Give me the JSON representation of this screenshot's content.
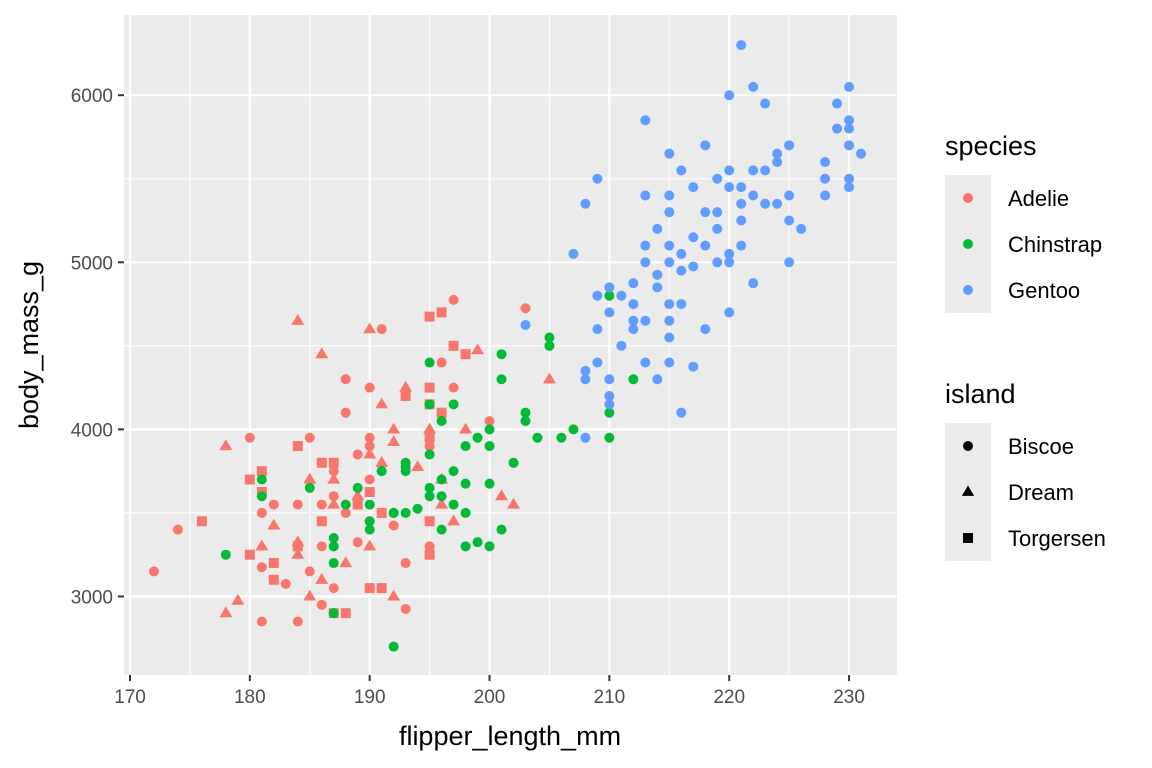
{
  "chart_data": {
    "type": "scatter",
    "title": "",
    "xlabel": "flipper_length_mm",
    "ylabel": "body_mass_g",
    "xlim": [
      169.5,
      234
    ],
    "ylim": [
      2530,
      6480
    ],
    "x_ticks": [
      170,
      180,
      190,
      200,
      210,
      220,
      230
    ],
    "y_ticks": [
      3000,
      4000,
      5000,
      6000
    ],
    "grid": true,
    "background": "#ebebeb",
    "legends": [
      {
        "title": "species",
        "aesthetic": "color",
        "placement": "right",
        "entries": [
          {
            "label": "Adelie",
            "color": "#f8766d"
          },
          {
            "label": "Chinstrap",
            "color": "#00ba38"
          },
          {
            "label": "Gentoo",
            "color": "#619cff"
          }
        ]
      },
      {
        "title": "island",
        "aesthetic": "shape",
        "placement": "right",
        "entries": [
          {
            "label": "Biscoe",
            "shape": "circle"
          },
          {
            "label": "Dream",
            "shape": "triangle"
          },
          {
            "label": "Torgersen",
            "shape": "square"
          }
        ]
      }
    ],
    "series": [
      {
        "species": "Adelie",
        "color": "#f8766d",
        "points": [
          [
            172,
            3150,
            "circle"
          ],
          [
            174,
            3400,
            "circle"
          ],
          [
            180,
            3950,
            "circle"
          ],
          [
            181,
            2850,
            "circle"
          ],
          [
            181,
            3175,
            "circle"
          ],
          [
            181,
            3500,
            "circle"
          ],
          [
            182,
            3550,
            "circle"
          ],
          [
            183,
            3075,
            "circle"
          ],
          [
            184,
            3550,
            "circle"
          ],
          [
            184,
            2850,
            "circle"
          ],
          [
            185,
            3150,
            "circle"
          ],
          [
            185,
            3950,
            "circle"
          ],
          [
            186,
            2950,
            "circle"
          ],
          [
            186,
            3550,
            "circle"
          ],
          [
            187,
            3050,
            "circle"
          ],
          [
            187,
            3750,
            "circle"
          ],
          [
            188,
            3500,
            "circle"
          ],
          [
            188,
            4300,
            "circle"
          ],
          [
            188,
            4100,
            "circle"
          ],
          [
            189,
            3850,
            "circle"
          ],
          [
            189,
            3325,
            "circle"
          ],
          [
            190,
            3450,
            "circle"
          ],
          [
            190,
            3700,
            "circle"
          ],
          [
            190,
            3950,
            "circle"
          ],
          [
            190,
            4250,
            "circle"
          ],
          [
            190,
            3900,
            "circle"
          ],
          [
            191,
            4600,
            "circle"
          ],
          [
            191,
            3050,
            "circle"
          ],
          [
            192,
            3425,
            "circle"
          ],
          [
            193,
            2925,
            "circle"
          ],
          [
            193,
            3200,
            "circle"
          ],
          [
            195,
            3300,
            "circle"
          ],
          [
            195,
            3900,
            "circle"
          ],
          [
            196,
            4400,
            "circle"
          ],
          [
            197,
            4775,
            "circle"
          ],
          [
            197,
            4250,
            "circle"
          ],
          [
            200,
            4050,
            "circle"
          ],
          [
            203,
            4725,
            "circle"
          ],
          [
            186,
            3300,
            "circle"
          ],
          [
            187,
            3600,
            "circle"
          ],
          [
            178,
            2900,
            "triangle"
          ],
          [
            178,
            3900,
            "triangle"
          ],
          [
            179,
            2975,
            "triangle"
          ],
          [
            181,
            3300,
            "triangle"
          ],
          [
            182,
            3425,
            "triangle"
          ],
          [
            184,
            4650,
            "triangle"
          ],
          [
            184,
            3325,
            "triangle"
          ],
          [
            185,
            3000,
            "triangle"
          ],
          [
            185,
            3700,
            "triangle"
          ],
          [
            186,
            4450,
            "triangle"
          ],
          [
            186,
            3100,
            "triangle"
          ],
          [
            187,
            3700,
            "triangle"
          ],
          [
            188,
            3200,
            "triangle"
          ],
          [
            189,
            3600,
            "triangle"
          ],
          [
            190,
            4600,
            "triangle"
          ],
          [
            190,
            3850,
            "triangle"
          ],
          [
            190,
            3300,
            "triangle"
          ],
          [
            191,
            3800,
            "triangle"
          ],
          [
            191,
            4150,
            "triangle"
          ],
          [
            192,
            4000,
            "triangle"
          ],
          [
            192,
            3000,
            "triangle"
          ],
          [
            193,
            4250,
            "triangle"
          ],
          [
            194,
            3775,
            "triangle"
          ],
          [
            195,
            4000,
            "triangle"
          ],
          [
            196,
            3700,
            "triangle"
          ],
          [
            197,
            3450,
            "triangle"
          ],
          [
            198,
            4000,
            "triangle"
          ],
          [
            199,
            4475,
            "triangle"
          ],
          [
            201,
            3600,
            "triangle"
          ],
          [
            202,
            3550,
            "triangle"
          ],
          [
            205,
            4300,
            "triangle"
          ],
          [
            196,
            3550,
            "triangle"
          ],
          [
            184,
            3250,
            "triangle"
          ],
          [
            187,
            3550,
            "triangle"
          ],
          [
            192,
            3925,
            "triangle"
          ],
          [
            176,
            3450,
            "square"
          ],
          [
            180,
            3700,
            "square"
          ],
          [
            180,
            3250,
            "square"
          ],
          [
            181,
            3625,
            "square"
          ],
          [
            181,
            3750,
            "square"
          ],
          [
            182,
            3200,
            "square"
          ],
          [
            182,
            3100,
            "square"
          ],
          [
            184,
            3300,
            "square"
          ],
          [
            184,
            3900,
            "square"
          ],
          [
            186,
            3450,
            "square"
          ],
          [
            186,
            3800,
            "square"
          ],
          [
            187,
            2900,
            "square"
          ],
          [
            187,
            3800,
            "square"
          ],
          [
            188,
            2900,
            "square"
          ],
          [
            189,
            3550,
            "square"
          ],
          [
            190,
            3050,
            "square"
          ],
          [
            190,
            3625,
            "square"
          ],
          [
            191,
            3050,
            "square"
          ],
          [
            191,
            3500,
            "square"
          ],
          [
            193,
            4200,
            "square"
          ],
          [
            195,
            4675,
            "square"
          ],
          [
            195,
            4250,
            "square"
          ],
          [
            195,
            4150,
            "square"
          ],
          [
            195,
            3450,
            "square"
          ],
          [
            195,
            3250,
            "square"
          ],
          [
            196,
            4700,
            "square"
          ],
          [
            196,
            4100,
            "square"
          ],
          [
            197,
            4500,
            "square"
          ],
          [
            198,
            4450,
            "square"
          ],
          [
            195,
            3950,
            "square"
          ]
        ]
      },
      {
        "species": "Chinstrap",
        "color": "#00ba38",
        "points": [
          [
            178,
            3250
          ],
          [
            181,
            3700
          ],
          [
            181,
            3600
          ],
          [
            185,
            3650
          ],
          [
            187,
            3200
          ],
          [
            187,
            3300
          ],
          [
            187,
            2900
          ],
          [
            187,
            3350
          ],
          [
            188,
            3550
          ],
          [
            189,
            3650
          ],
          [
            190,
            3400
          ],
          [
            190,
            3450
          ],
          [
            190,
            3550
          ],
          [
            191,
            3750
          ],
          [
            192,
            3500
          ],
          [
            192,
            2700
          ],
          [
            193,
            3775
          ],
          [
            193,
            3800
          ],
          [
            193,
            3500
          ],
          [
            194,
            3525
          ],
          [
            195,
            3650
          ],
          [
            195,
            3600
          ],
          [
            195,
            4400
          ],
          [
            195,
            4150
          ],
          [
            196,
            3700
          ],
          [
            196,
            3600
          ],
          [
            196,
            4050
          ],
          [
            197,
            3750
          ],
          [
            197,
            4150
          ],
          [
            198,
            3675
          ],
          [
            198,
            3900
          ],
          [
            198,
            3300
          ],
          [
            199,
            3950
          ],
          [
            199,
            3325
          ],
          [
            200,
            4000
          ],
          [
            200,
            3675
          ],
          [
            200,
            3300
          ],
          [
            201,
            4450
          ],
          [
            201,
            4300
          ],
          [
            201,
            3400
          ],
          [
            202,
            3800
          ],
          [
            203,
            4100
          ],
          [
            203,
            4050
          ],
          [
            204,
            3950
          ],
          [
            205,
            4550
          ],
          [
            205,
            4500
          ],
          [
            206,
            3950
          ],
          [
            207,
            4000
          ],
          [
            210,
            4100
          ],
          [
            210,
            4800
          ],
          [
            210,
            3950
          ],
          [
            212,
            4300
          ],
          [
            191,
            3750
          ],
          [
            195,
            3850
          ],
          [
            193,
            3750
          ],
          [
            197,
            3550
          ],
          [
            200,
            3900
          ],
          [
            198,
            3500
          ],
          [
            196,
            3400
          ],
          [
            192,
            3500
          ]
        ]
      },
      {
        "species": "Gentoo",
        "color": "#619cff",
        "points": [
          [
            203,
            4625
          ],
          [
            207,
            5050
          ],
          [
            208,
            4350
          ],
          [
            208,
            4300
          ],
          [
            208,
            5350
          ],
          [
            208,
            3950
          ],
          [
            209,
            4800
          ],
          [
            209,
            4600
          ],
          [
            209,
            5500
          ],
          [
            209,
            4400
          ],
          [
            210,
            4850
          ],
          [
            210,
            4700
          ],
          [
            210,
            4300
          ],
          [
            210,
            4200
          ],
          [
            210,
            4150
          ],
          [
            211,
            4800
          ],
          [
            211,
            4500
          ],
          [
            212,
            4875
          ],
          [
            212,
            4750
          ],
          [
            212,
            4650
          ],
          [
            212,
            4600
          ],
          [
            213,
            4400
          ],
          [
            213,
            4650
          ],
          [
            213,
            5850
          ],
          [
            213,
            5400
          ],
          [
            213,
            5000
          ],
          [
            214,
            4850
          ],
          [
            214,
            5200
          ],
          [
            214,
            4925
          ],
          [
            215,
            5650
          ],
          [
            215,
            5400
          ],
          [
            215,
            5100
          ],
          [
            215,
            4750
          ],
          [
            215,
            5000
          ],
          [
            215,
            4650
          ],
          [
            215,
            5300
          ],
          [
            215,
            4400
          ],
          [
            215,
            4550
          ],
          [
            216,
            5050
          ],
          [
            216,
            4750
          ],
          [
            216,
            4100
          ],
          [
            216,
            5550
          ],
          [
            216,
            4950
          ],
          [
            217,
            5450
          ],
          [
            217,
            4375
          ],
          [
            217,
            4975
          ],
          [
            218,
            5300
          ],
          [
            218,
            4600
          ],
          [
            218,
            5700
          ],
          [
            218,
            5100
          ],
          [
            219,
            5500
          ],
          [
            219,
            5000
          ],
          [
            219,
            5200
          ],
          [
            220,
            5450
          ],
          [
            220,
            5550
          ],
          [
            220,
            6000
          ],
          [
            220,
            5000
          ],
          [
            220,
            5050
          ],
          [
            220,
            4700
          ],
          [
            221,
            5350
          ],
          [
            221,
            5450
          ],
          [
            221,
            6300
          ],
          [
            221,
            5100
          ],
          [
            222,
            5550
          ],
          [
            222,
            5400
          ],
          [
            222,
            6050
          ],
          [
            222,
            4875
          ],
          [
            223,
            5350
          ],
          [
            223,
            5950
          ],
          [
            224,
            5650
          ],
          [
            224,
            5350
          ],
          [
            224,
            5600
          ],
          [
            225,
            5700
          ],
          [
            225,
            5400
          ],
          [
            225,
            5250
          ],
          [
            225,
            5000
          ],
          [
            226,
            5200
          ],
          [
            228,
            5600
          ],
          [
            228,
            5400
          ],
          [
            228,
            5500
          ],
          [
            229,
            5950
          ],
          [
            229,
            5800
          ],
          [
            230,
            5800
          ],
          [
            230,
            5700
          ],
          [
            230,
            6050
          ],
          [
            230,
            5500
          ],
          [
            230,
            5450
          ],
          [
            230,
            5850
          ],
          [
            231,
            5650
          ],
          [
            214,
            4300
          ],
          [
            219,
            5300
          ],
          [
            223,
            5550
          ],
          [
            221,
            5250
          ],
          [
            217,
            5150
          ],
          [
            213,
            5100
          ]
        ]
      }
    ]
  }
}
